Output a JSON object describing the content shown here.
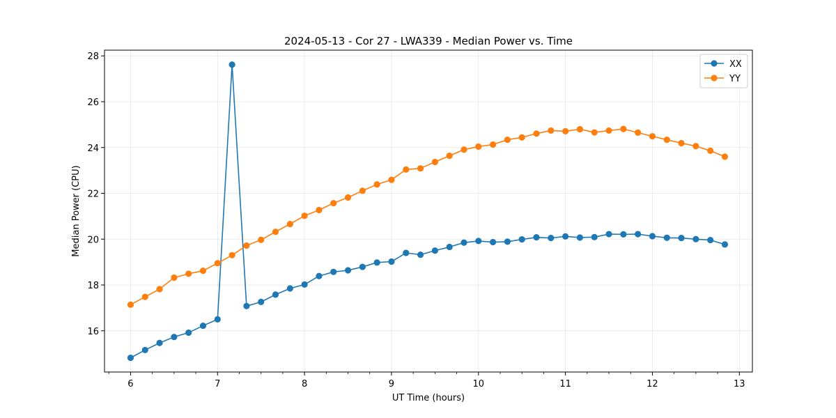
{
  "chart_data": {
    "type": "line",
    "title": "2024-05-13 - Cor 27 - LWA339 - Median Power vs. Time",
    "xlabel": "UT Time (hours)",
    "ylabel": "Median Power (CPU)",
    "xlim": [
      5.7,
      13.15
    ],
    "ylim": [
      14.2,
      28.25
    ],
    "xticks": [
      6,
      7,
      8,
      9,
      10,
      11,
      12,
      13
    ],
    "xminor_step": 0.25,
    "yticks": [
      16,
      18,
      20,
      22,
      24,
      26,
      28
    ],
    "grid": true,
    "legend_position": "top-right",
    "x": [
      6.0,
      6.1667,
      6.3333,
      6.5,
      6.6667,
      6.8333,
      7.0,
      7.1667,
      7.3333,
      7.5,
      7.6667,
      7.8333,
      8.0,
      8.1667,
      8.3333,
      8.5,
      8.6667,
      8.8333,
      9.0,
      9.1667,
      9.3333,
      9.5,
      9.6667,
      9.8333,
      10.0,
      10.1667,
      10.3333,
      10.5,
      10.6667,
      10.8333,
      11.0,
      11.1667,
      11.3333,
      11.5,
      11.6667,
      11.8333,
      12.0,
      12.1667,
      12.3333,
      12.5,
      12.6667,
      12.8333
    ],
    "series": [
      {
        "name": "XX",
        "color": "#1f77b4",
        "values": [
          14.82,
          15.16,
          15.47,
          15.73,
          15.92,
          16.22,
          16.5,
          27.62,
          17.08,
          17.26,
          17.58,
          17.85,
          18.02,
          18.39,
          18.57,
          18.64,
          18.79,
          18.98,
          19.02,
          19.4,
          19.32,
          19.5,
          19.66,
          19.85,
          19.92,
          19.87,
          19.89,
          19.99,
          20.08,
          20.05,
          20.12,
          20.07,
          20.09,
          20.22,
          20.21,
          20.22,
          20.13,
          20.06,
          20.05,
          20.0,
          19.96,
          19.77
        ]
      },
      {
        "name": "YY",
        "color": "#ff7f0e",
        "values": [
          17.14,
          17.48,
          17.82,
          18.32,
          18.49,
          18.62,
          18.95,
          19.3,
          19.72,
          19.97,
          20.32,
          20.66,
          21.02,
          21.27,
          21.57,
          21.82,
          22.11,
          22.39,
          22.59,
          23.04,
          23.09,
          23.37,
          23.64,
          23.91,
          24.04,
          24.13,
          24.34,
          24.44,
          24.61,
          24.74,
          24.71,
          24.8,
          24.66,
          24.74,
          24.81,
          24.65,
          24.49,
          24.34,
          24.19,
          24.06,
          23.86,
          23.6
        ]
      }
    ]
  }
}
